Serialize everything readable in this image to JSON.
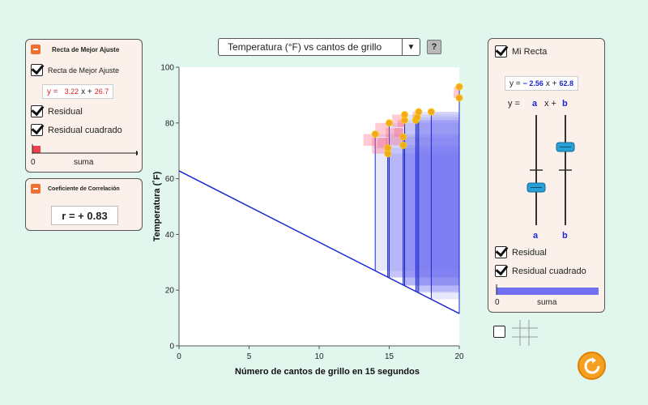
{
  "best_fit_panel": {
    "title": "Recta de Mejor Ajuste",
    "show_line_label": "Recta de Mejor Ajuste",
    "eq_y": "y =",
    "eq_slope": "3.22",
    "eq_x": "x +",
    "eq_intercept": "26.7",
    "residual_label": "Residual",
    "residual_sq_label": "Residual cuadrado",
    "sum_zero": "0",
    "sum_label": "suma"
  },
  "corr_panel": {
    "title": "Coeficiente de Correlación",
    "r_text": "r = + 0.83"
  },
  "dropdown": {
    "selected": "Temperatura (°F) vs cantos de grillo",
    "arrow": "▼"
  },
  "help_label": "?",
  "my_line_panel": {
    "title": "Mi Recta",
    "eq_y": "y =",
    "eq_slope": "− 2.56",
    "eq_x": "x +",
    "eq_intercept": "62.8",
    "slider_y": "y =",
    "slider_a": "a",
    "slider_x": "x +",
    "slider_b": "b",
    "slider_a_bottom": "a",
    "slider_b_bottom": "b",
    "residual_label": "Residual",
    "residual_sq_label": "Residual cuadrado",
    "sum_zero": "0",
    "sum_label": "suma",
    "a_value": -2.56,
    "b_value": 62.8
  },
  "colors": {
    "best_fit_line": "#e02020",
    "my_line": "#1c28d0",
    "point": "#f5a623",
    "best_square": "#ff5a78",
    "my_square": "#6f6ff5",
    "accent": "#f07030"
  },
  "chart_data": {
    "type": "scatter",
    "xlabel": "Número de cantos de grillo en 15 segundos",
    "ylabel": "Temperatura (˚F)",
    "xlim": [
      0,
      20
    ],
    "ylim": [
      0,
      100
    ],
    "xticks": [
      0,
      5,
      10,
      15,
      20
    ],
    "yticks": [
      0,
      20,
      40,
      60,
      80,
      100
    ],
    "points": [
      {
        "x": 14.0,
        "y": 76
      },
      {
        "x": 14.9,
        "y": 69
      },
      {
        "x": 14.9,
        "y": 71
      },
      {
        "x": 15.0,
        "y": 80
      },
      {
        "x": 16.0,
        "y": 72
      },
      {
        "x": 16.0,
        "y": 75
      },
      {
        "x": 16.1,
        "y": 81
      },
      {
        "x": 16.1,
        "y": 83
      },
      {
        "x": 16.9,
        "y": 81
      },
      {
        "x": 17.0,
        "y": 82
      },
      {
        "x": 17.1,
        "y": 84
      },
      {
        "x": 18.0,
        "y": 84
      },
      {
        "x": 20.0,
        "y": 89
      },
      {
        "x": 20.0,
        "y": 93
      }
    ],
    "lines": [
      {
        "name": "Recta de Mejor Ajuste",
        "slope": 3.22,
        "intercept": 26.7
      },
      {
        "name": "Mi Recta",
        "slope": -2.56,
        "intercept": 62.8
      }
    ]
  }
}
